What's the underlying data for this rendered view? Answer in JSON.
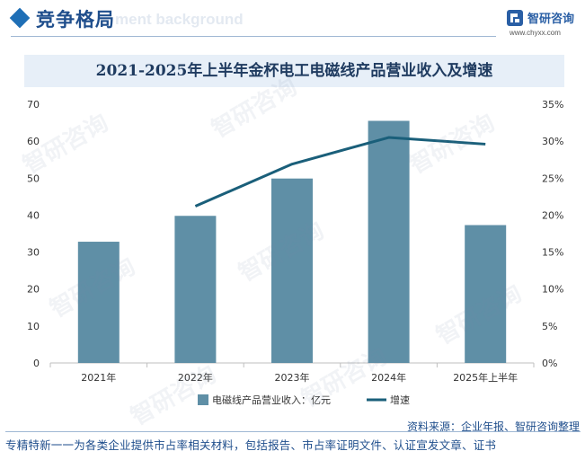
{
  "header": {
    "title": "竞争格局",
    "ghost_text": "ment background",
    "logo_name": "智研咨询",
    "logo_url": "www.chyxx.com"
  },
  "watermark_text": "智研咨询",
  "chart_data": {
    "type": "bar",
    "title": "2021-2025年上半年金杯电工电磁线产品营业收入及增速",
    "categories": [
      "2021年",
      "2022年",
      "2023年",
      "2024年",
      "2025年上半年"
    ],
    "series": [
      {
        "name": "电磁线产品营业收入：亿元",
        "type": "bar",
        "axis": "left",
        "color": "#5f8fa6",
        "values": [
          32.8,
          39.8,
          49.9,
          65.5,
          37.3
        ]
      },
      {
        "name": "增速",
        "type": "line",
        "axis": "right",
        "color": "#1a5f7a",
        "values": [
          null,
          21.2,
          26.9,
          30.5,
          29.6
        ]
      }
    ],
    "y_left": {
      "min": 0,
      "max": 70,
      "step": 10,
      "ticks": [
        "0",
        "10",
        "20",
        "30",
        "40",
        "50",
        "60",
        "70"
      ]
    },
    "y_right": {
      "min": 0,
      "max": 35,
      "step": 5,
      "ticks": [
        "0%",
        "5%",
        "10%",
        "15%",
        "20%",
        "25%",
        "30%",
        "35%"
      ]
    },
    "grid": false,
    "legend_position": "bottom"
  },
  "source": "资料来源：企业年报、智研咨询整理",
  "footer": "专精特新一一为各类企业提供市占率相关材料，包括报告、市占率证明文件、认证宣发文章、证书"
}
